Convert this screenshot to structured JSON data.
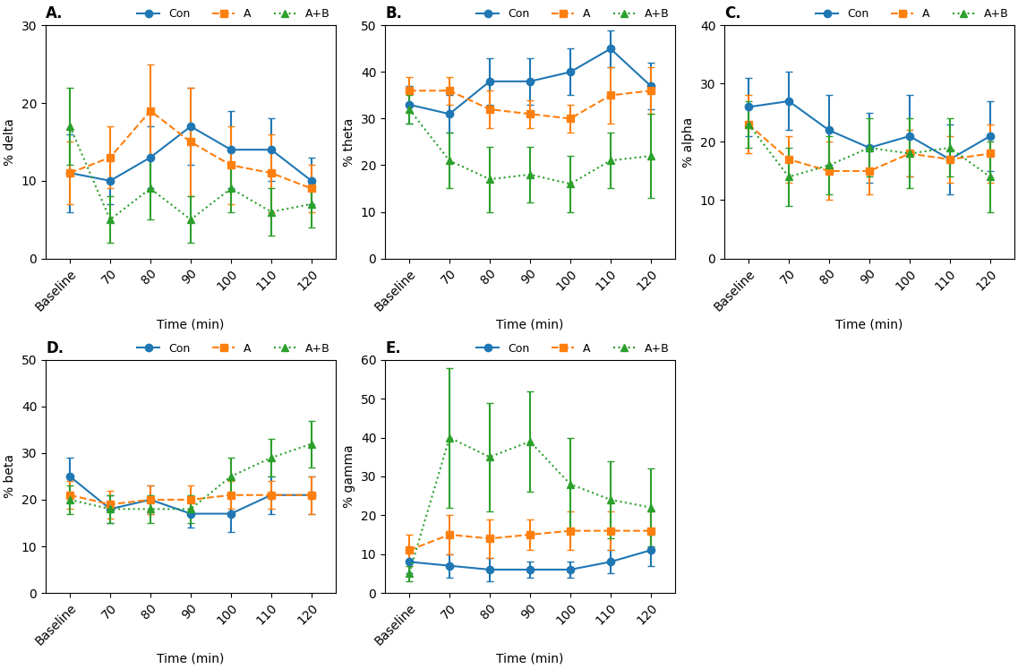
{
  "chart_data": [
    {
      "type": "line",
      "title": "A.",
      "x_label": "Time (min)",
      "y_label": "% delta",
      "categories": [
        "Baseline",
        "70",
        "80",
        "90",
        "100",
        "110",
        "120"
      ],
      "ylim": [
        0,
        30
      ],
      "yticks": [
        0,
        10,
        20,
        30
      ],
      "legend": "upper right",
      "series": [
        {
          "name": "Con",
          "marker": "circle",
          "line_style": "solid",
          "values": [
            11,
            10,
            13,
            17,
            14,
            14,
            10
          ],
          "errors": [
            5,
            3,
            4,
            5,
            5,
            4,
            3
          ]
        },
        {
          "name": "A",
          "marker": "square",
          "line_style": "dashed",
          "values": [
            11,
            13,
            19,
            15,
            12,
            11,
            9
          ],
          "errors": [
            4,
            4,
            6,
            7,
            5,
            5,
            3
          ]
        },
        {
          "name": "A+B",
          "marker": "triangle",
          "line_style": "dotted",
          "values": [
            17,
            5,
            9,
            5,
            9,
            6,
            7
          ],
          "errors": [
            5,
            3,
            4,
            3,
            3,
            3,
            3
          ]
        }
      ]
    },
    {
      "type": "line",
      "title": "B.",
      "x_label": "Time (min)",
      "y_label": "% theta",
      "categories": [
        "Baseline",
        "70",
        "80",
        "90",
        "100",
        "110",
        "120"
      ],
      "ylim": [
        0,
        50
      ],
      "yticks": [
        0,
        10,
        20,
        30,
        40,
        50
      ],
      "legend": "upper right",
      "series": [
        {
          "name": "Con",
          "marker": "circle",
          "line_style": "solid",
          "values": [
            33,
            31,
            38,
            38,
            40,
            45,
            37
          ],
          "errors": [
            4,
            4,
            5,
            5,
            5,
            4,
            5
          ]
        },
        {
          "name": "A",
          "marker": "square",
          "line_style": "dashed",
          "values": [
            36,
            36,
            32,
            31,
            30,
            35,
            36
          ],
          "errors": [
            3,
            3,
            4,
            3,
            3,
            6,
            5
          ]
        },
        {
          "name": "A+B",
          "marker": "triangle",
          "line_style": "dotted",
          "values": [
            32,
            21,
            17,
            18,
            16,
            21,
            22
          ],
          "errors": [
            3,
            6,
            7,
            6,
            6,
            6,
            9
          ]
        }
      ]
    },
    {
      "type": "line",
      "title": "C.",
      "x_label": "Time (min)",
      "y_label": "% alpha",
      "categories": [
        "Baseline",
        "70",
        "80",
        "90",
        "100",
        "110",
        "120"
      ],
      "ylim": [
        0,
        40
      ],
      "yticks": [
        0,
        10,
        20,
        30,
        40
      ],
      "legend": "upper right",
      "series": [
        {
          "name": "Con",
          "marker": "circle",
          "line_style": "solid",
          "values": [
            26,
            27,
            22,
            19,
            21,
            17,
            21
          ],
          "errors": [
            5,
            5,
            6,
            6,
            7,
            6,
            6
          ]
        },
        {
          "name": "A",
          "marker": "square",
          "line_style": "dashed",
          "values": [
            23,
            17,
            15,
            15,
            18,
            17,
            18
          ],
          "errors": [
            5,
            4,
            5,
            4,
            4,
            4,
            5
          ]
        },
        {
          "name": "A+B",
          "marker": "triangle",
          "line_style": "dotted",
          "values": [
            23,
            14,
            16,
            19,
            18,
            19,
            14
          ],
          "errors": [
            4,
            5,
            5,
            5,
            6,
            5,
            6
          ]
        }
      ]
    },
    {
      "type": "line",
      "title": "D.",
      "x_label": "Time (min)",
      "y_label": "% beta",
      "categories": [
        "Baseline",
        "70",
        "80",
        "90",
        "100",
        "110",
        "120"
      ],
      "ylim": [
        0,
        50
      ],
      "yticks": [
        0,
        10,
        20,
        30,
        40,
        50
      ],
      "legend": "upper right",
      "series": [
        {
          "name": "Con",
          "marker": "circle",
          "line_style": "solid",
          "values": [
            25,
            18,
            20,
            17,
            17,
            21,
            21
          ],
          "errors": [
            4,
            3,
            3,
            3,
            4,
            4,
            4
          ]
        },
        {
          "name": "A",
          "marker": "square",
          "line_style": "dashed",
          "values": [
            21,
            19,
            20,
            20,
            21,
            21,
            21
          ],
          "errors": [
            3,
            3,
            3,
            3,
            3,
            3,
            4
          ]
        },
        {
          "name": "A+B",
          "marker": "triangle",
          "line_style": "dotted",
          "values": [
            20,
            18,
            18,
            18,
            25,
            29,
            32
          ],
          "errors": [
            3,
            3,
            3,
            3,
            4,
            4,
            5
          ]
        }
      ]
    },
    {
      "type": "line",
      "title": "E.",
      "x_label": "Time (min)",
      "y_label": "% gamma",
      "categories": [
        "Baseline",
        "70",
        "80",
        "90",
        "100",
        "110",
        "120"
      ],
      "ylim": [
        0,
        60
      ],
      "yticks": [
        0,
        10,
        20,
        30,
        40,
        50,
        60
      ],
      "legend": "upper right",
      "series": [
        {
          "name": "Con",
          "marker": "circle",
          "line_style": "solid",
          "values": [
            8,
            7,
            6,
            6,
            6,
            8,
            11
          ],
          "errors": [
            3,
            3,
            3,
            2,
            2,
            3,
            4
          ]
        },
        {
          "name": "A",
          "marker": "square",
          "line_style": "dashed",
          "values": [
            11,
            15,
            14,
            15,
            16,
            16,
            16
          ],
          "errors": [
            4,
            5,
            5,
            4,
            5,
            5,
            5
          ]
        },
        {
          "name": "A+B",
          "marker": "triangle",
          "line_style": "dotted",
          "values": [
            5,
            40,
            35,
            39,
            28,
            24,
            22
          ],
          "errors": [
            2,
            18,
            14,
            13,
            12,
            10,
            10
          ]
        }
      ]
    }
  ]
}
